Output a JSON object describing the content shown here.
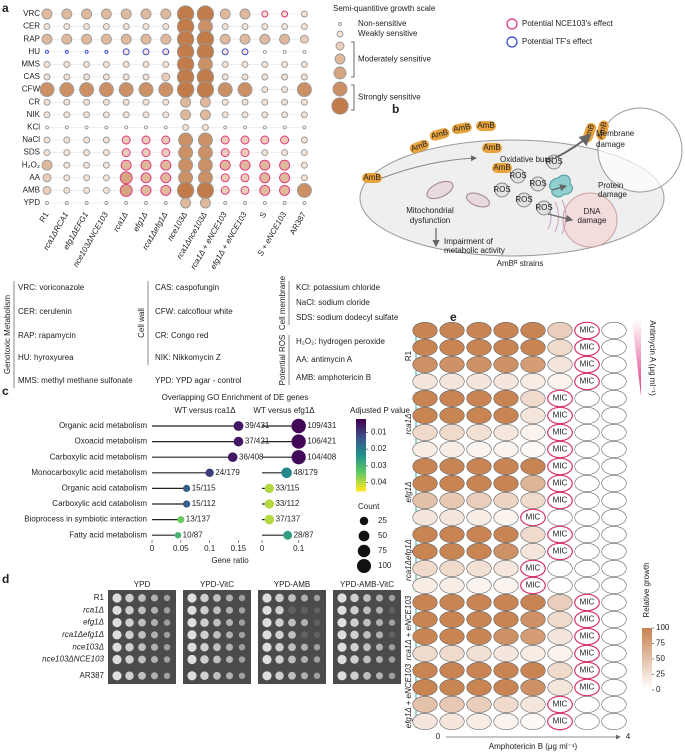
{
  "panel_a": {
    "label": "a",
    "rows": [
      "VRC",
      "CER",
      "RAP",
      "HU",
      "MMS",
      "CAS",
      "CFW",
      "CR",
      "NIK",
      "KCl",
      "NaCl",
      "SDS",
      "H₂O₂",
      "AA",
      "AMB",
      "YPD"
    ],
    "columns": [
      "R1",
      "rca1ΔRCA1",
      "efg1ΔEFG1",
      "nce103ΔNCE103",
      "rca1Δ",
      "efg1Δ",
      "rca1Δefg1Δ",
      "nce103Δ",
      "rca1Δnce103Δ",
      "rca1Δ + eNCE103",
      "efg1Δ + eNCE103",
      "S",
      "S + eNCE103",
      "AR387"
    ],
    "row_colors": [
      "#222",
      "#222",
      "#222",
      "#222",
      "#222",
      "#222",
      "#222",
      "#222",
      "#222",
      "#222",
      "#e0307a",
      "#e0307a",
      "#e0307a",
      "#e0307a",
      "#e0307a",
      "#222"
    ],
    "column_colors": [
      "#222",
      "#222",
      "#222",
      "#222",
      "#222",
      "#222",
      "#222",
      "#222",
      "#222",
      "#e0307a",
      "#e0307a",
      "#e0307a",
      "#e0307a",
      "#222"
    ],
    "scores": [
      [
        3,
        3,
        3,
        3,
        3,
        3,
        3,
        6,
        6,
        3,
        3,
        1,
        1,
        1
      ],
      [
        1,
        1,
        1,
        1,
        1,
        1,
        1,
        6,
        5,
        1,
        1,
        1,
        1,
        1
      ],
      [
        3,
        3,
        3,
        3,
        3,
        3,
        3,
        6,
        6,
        3,
        3,
        3,
        3,
        2
      ],
      [
        0,
        0,
        0,
        0,
        1,
        1,
        1,
        6,
        6,
        1,
        1,
        0,
        0,
        0
      ],
      [
        1,
        1,
        1,
        1,
        1,
        1,
        1,
        6,
        5,
        1,
        1,
        1,
        1,
        1
      ],
      [
        1,
        1,
        1,
        1,
        1,
        1,
        2,
        6,
        6,
        1,
        1,
        1,
        1,
        1
      ],
      [
        5,
        5,
        5,
        5,
        5,
        5,
        5,
        6,
        6,
        5,
        5,
        1,
        1,
        5
      ],
      [
        1,
        1,
        1,
        1,
        1,
        1,
        1,
        3,
        3,
        1,
        1,
        1,
        1,
        1
      ],
      [
        1,
        1,
        1,
        1,
        1,
        1,
        1,
        3,
        3,
        1,
        1,
        1,
        1,
        1
      ],
      [
        0,
        0,
        0,
        0,
        0,
        0,
        0,
        1,
        1,
        0,
        0,
        0,
        0,
        0
      ],
      [
        1,
        1,
        1,
        1,
        2,
        2,
        2,
        5,
        5,
        2,
        2,
        2,
        2,
        1
      ],
      [
        1,
        1,
        1,
        1,
        2,
        2,
        2,
        5,
        5,
        2,
        2,
        1,
        1,
        1
      ],
      [
        3,
        1,
        1,
        1,
        3,
        3,
        3,
        5,
        5,
        3,
        3,
        3,
        3,
        1
      ],
      [
        2,
        1,
        1,
        1,
        4,
        3,
        3,
        5,
        5,
        2,
        2,
        3,
        3,
        1
      ],
      [
        2,
        1,
        1,
        1,
        4,
        3,
        3,
        6,
        6,
        2,
        2,
        3,
        3,
        5
      ],
      [
        0,
        0,
        0,
        0,
        0,
        0,
        0,
        3,
        3,
        0,
        0,
        0,
        0,
        0
      ]
    ],
    "ring_colors": [
      [
        "#999",
        "#999",
        "#999",
        "#999",
        "#999",
        "#999",
        "#999",
        "#999",
        "#999",
        "#999",
        "#999",
        "#e0307a",
        "#e0307a",
        "#999"
      ],
      [
        "#999",
        "#999",
        "#999",
        "#999",
        "#999",
        "#999",
        "#999",
        "#999",
        "#999",
        "#999",
        "#999",
        "#999",
        "#999",
        "#999"
      ],
      [
        "#999",
        "#999",
        "#999",
        "#999",
        "#999",
        "#999",
        "#999",
        "#999",
        "#999",
        "#999",
        "#999",
        "#999",
        "#999",
        "#999"
      ],
      [
        "#3040d0",
        "#3040d0",
        "#3040d0",
        "#3040d0",
        "#3040d0",
        "#3040d0",
        "#3040d0",
        "#999",
        "#999",
        "#3040d0",
        "#3040d0",
        "#999",
        "#999",
        "#999"
      ],
      [
        "#999",
        "#999",
        "#999",
        "#999",
        "#999",
        "#999",
        "#999",
        "#999",
        "#999",
        "#999",
        "#999",
        "#999",
        "#999",
        "#999"
      ],
      [
        "#999",
        "#999",
        "#999",
        "#999",
        "#999",
        "#999",
        "#999",
        "#999",
        "#999",
        "#999",
        "#999",
        "#999",
        "#999",
        "#999"
      ],
      [
        "#999",
        "#999",
        "#999",
        "#999",
        "#999",
        "#999",
        "#999",
        "#999",
        "#999",
        "#999",
        "#999",
        "#999",
        "#999",
        "#999"
      ],
      [
        "#999",
        "#999",
        "#999",
        "#999",
        "#999",
        "#999",
        "#999",
        "#999",
        "#999",
        "#999",
        "#999",
        "#999",
        "#999",
        "#999"
      ],
      [
        "#999",
        "#999",
        "#999",
        "#999",
        "#999",
        "#999",
        "#999",
        "#999",
        "#999",
        "#999",
        "#999",
        "#999",
        "#999",
        "#999"
      ],
      [
        "#999",
        "#999",
        "#999",
        "#999",
        "#999",
        "#999",
        "#999",
        "#999",
        "#999",
        "#999",
        "#999",
        "#999",
        "#999",
        "#999"
      ],
      [
        "#999",
        "#999",
        "#999",
        "#999",
        "#e0307a",
        "#e0307a",
        "#e0307a",
        "#999",
        "#999",
        "#e0307a",
        "#e0307a",
        "#e0307a",
        "#e0307a",
        "#999"
      ],
      [
        "#999",
        "#999",
        "#999",
        "#999",
        "#e0307a",
        "#e0307a",
        "#e0307a",
        "#999",
        "#999",
        "#e0307a",
        "#e0307a",
        "#999",
        "#999",
        "#999"
      ],
      [
        "#999",
        "#999",
        "#999",
        "#999",
        "#e0307a",
        "#e0307a",
        "#e0307a",
        "#999",
        "#999",
        "#e0307a",
        "#e0307a",
        "#e0307a",
        "#e0307a",
        "#999"
      ],
      [
        "#999",
        "#999",
        "#999",
        "#999",
        "#e0307a",
        "#e0307a",
        "#e0307a",
        "#999",
        "#999",
        "#e0307a",
        "#e0307a",
        "#e0307a",
        "#e0307a",
        "#999"
      ],
      [
        "#999",
        "#999",
        "#999",
        "#999",
        "#e0307a",
        "#e0307a",
        "#e0307a",
        "#999",
        "#999",
        "#e0307a",
        "#e0307a",
        "#e0307a",
        "#e0307a",
        "#999"
      ],
      [
        "#999",
        "#999",
        "#999",
        "#999",
        "#999",
        "#999",
        "#999",
        "#999",
        "#999",
        "#999",
        "#999",
        "#999",
        "#999",
        "#999"
      ]
    ],
    "fill_none": "#ffffff",
    "fill_low": "#f4e2d4",
    "fill_high": "#c27b4a",
    "legend": {
      "title": "Semi-quantitive growth scale",
      "levels": [
        0,
        1,
        2,
        3,
        4,
        5,
        6
      ],
      "groups": [
        {
          "label": "Non-sensitive",
          "from": 0,
          "to": 0
        },
        {
          "label": "Weakly sensitive",
          "from": 1,
          "to": 1
        },
        {
          "label": "Moderately sensitive",
          "from": 2,
          "to": 4
        },
        {
          "label": "Strongly sensitive",
          "from": 5,
          "to": 6
        }
      ],
      "rings": [
        {
          "label": "Potential NCE103's effect",
          "color": "#e0307a"
        },
        {
          "label": "Potential TF's effect",
          "color": "#3040d0"
        }
      ]
    },
    "abbreviations": {
      "groups": [
        {
          "name": "Genotoxic Metabolism",
          "items": [
            "VRC: voriconazole",
            "CER: cerulenin",
            "RAP: rapamycin",
            "HU: hyroxyurea",
            "MMS: methyl methane sulfonate"
          ]
        },
        {
          "name": "Cell wall",
          "items": [
            "CAS: caspofungin",
            "CFW: calcoflour white",
            "CR: Congo red",
            "NIK: Nikkomycin Z"
          ]
        },
        {
          "name": "Cell membrane",
          "items": [
            "KCl: potassium chloride",
            "NaCl: sodium cloride",
            "SDS: sodium dodecyl sulfate"
          ]
        },
        {
          "name": "Potential ROS",
          "items": [
            "H₂O₂: hydrogen peroxide",
            "AA: antimycin A",
            "AMB: amphotericin B"
          ]
        }
      ],
      "other": [
        "YPD: YPD agar - control"
      ]
    }
  },
  "panel_b": {
    "label": "b",
    "amb": "AmB",
    "ros": "ROS",
    "oxidative_burst": "Oxidative burst",
    "membrane_damage": [
      "Membrane",
      "damage"
    ],
    "protein_damage": [
      "Protein",
      "damage"
    ],
    "dna_damage": [
      "DNA",
      "damage"
    ],
    "mitochondrial": [
      "Mitochondrial",
      "dysfunction"
    ],
    "impairment": [
      "Impairment of",
      "metabolic activity"
    ],
    "strains": "AmBᴿ strains"
  },
  "panel_c": {
    "label": "c",
    "title": "Overlapping GO Enrichment of DE genes",
    "categories": [
      "Organic acid metabolism",
      "Oxoacid metabolism",
      "Carboxylic acid metabolism",
      "Monocarboxylic acid metabolism",
      "Organic acid catabolism",
      "Carboxylic acid catabolism",
      "Bioprocess in symbiotic interaction",
      "Fatty acid metabolism"
    ],
    "x_label": "Gene ratio",
    "stem_color": "#222222",
    "colormap": [
      "#440154",
      "#3b528b",
      "#21918c",
      "#5ec962",
      "#fde725"
    ],
    "colorbar_title": "Adjusted P value",
    "colorbar_lim": [
      0.002,
      0.045
    ],
    "colorbar_ticks": [
      0.01,
      0.02,
      0.03,
      0.04
    ],
    "size_title": "Count",
    "size_ticks": [
      25,
      50,
      75,
      100
    ],
    "panels": [
      {
        "title": "WT versus rca1Δ",
        "xlim": [
          0,
          0.17
        ],
        "xticks": [
          0,
          0.05,
          0.1,
          0.15
        ],
        "values": [
          0.15,
          0.15,
          0.14,
          0.1,
          0.06,
          0.06,
          0.05,
          0.045
        ],
        "counts": [
          39,
          37,
          36,
          24,
          15,
          15,
          13,
          10
        ],
        "padj": [
          0.005,
          0.005,
          0.005,
          0.01,
          0.015,
          0.015,
          0.035,
          0.03
        ],
        "labels": [
          "39/431",
          "37/421",
          "36/408",
          "24/179",
          "15/115",
          "15/112",
          "13/137",
          "10/87"
        ]
      },
      {
        "title": "WT versus efg1Δ",
        "xlim": [
          0,
          0.12
        ],
        "xticks": [
          0,
          0.1
        ],
        "values": [
          0.1,
          0.1,
          0.1,
          0.067,
          0.02,
          0.02,
          0.02,
          0.07
        ],
        "counts": [
          109,
          106,
          104,
          48,
          33,
          33,
          37,
          28
        ],
        "padj": [
          0.003,
          0.003,
          0.003,
          0.022,
          0.04,
          0.04,
          0.04,
          0.026
        ],
        "labels": [
          "109/431",
          "106/421",
          "104/408",
          "48/179",
          "33/115",
          "33/112",
          "37/137",
          "28/87"
        ]
      }
    ]
  },
  "panel_d": {
    "label": "d",
    "media": [
      "YPD",
      "YPD-VitC",
      "YPD-AMB",
      "YPD-AMB-VitC"
    ],
    "strains": [
      "R1",
      "rca1Δ",
      "efg1Δ",
      "rca1Δefg1Δ",
      "nce103Δ",
      "nce103ΔNCE103",
      "AR387"
    ],
    "plate_color": "#4b4b4b",
    "spot_color": "#e6e6e6"
  },
  "panel_e": {
    "label": "e",
    "groups": [
      "R1",
      "rca1Δ",
      "efg1Δ",
      "rca1Δefg1Δ",
      "rca1Δ + eNCE103",
      "efg1Δ + eNCE103"
    ],
    "values": [
      [
        [
          100,
          100,
          100,
          100,
          100,
          40,
          "MIC",
          0
        ],
        [
          100,
          100,
          100,
          100,
          100,
          30,
          "MIC",
          0
        ],
        [
          90,
          90,
          90,
          90,
          80,
          20,
          "MIC",
          0
        ],
        [
          20,
          20,
          20,
          20,
          15,
          10,
          "MIC",
          0
        ]
      ],
      [
        [
          100,
          100,
          100,
          100,
          30,
          "MIC",
          0,
          0
        ],
        [
          100,
          100,
          100,
          100,
          20,
          "MIC",
          0,
          0
        ],
        [
          30,
          30,
          25,
          20,
          10,
          "MIC",
          0,
          0
        ],
        [
          15,
          15,
          10,
          10,
          5,
          "MIC",
          0,
          0
        ]
      ],
      [
        [
          100,
          100,
          100,
          100,
          100,
          "MIC",
          0,
          0
        ],
        [
          100,
          100,
          100,
          100,
          60,
          "MIC",
          0,
          0
        ],
        [
          50,
          45,
          40,
          35,
          30,
          "MIC",
          0,
          0
        ],
        [
          20,
          20,
          15,
          10,
          "MIC",
          0,
          0,
          0
        ]
      ],
      [
        [
          100,
          100,
          100,
          100,
          30,
          "MIC",
          0,
          0
        ],
        [
          100,
          100,
          100,
          90,
          20,
          "MIC",
          0,
          0
        ],
        [
          30,
          30,
          25,
          20,
          "MIC",
          0,
          0,
          0
        ],
        [
          15,
          15,
          10,
          10,
          "MIC",
          0,
          0,
          0
        ]
      ],
      [
        [
          100,
          100,
          100,
          100,
          100,
          40,
          "MIC",
          0
        ],
        [
          100,
          100,
          100,
          100,
          90,
          30,
          "MIC",
          0
        ],
        [
          100,
          100,
          100,
          90,
          80,
          20,
          "MIC",
          0
        ],
        [
          30,
          30,
          25,
          20,
          15,
          10,
          "MIC",
          0
        ]
      ],
      [
        [
          100,
          100,
          100,
          100,
          100,
          30,
          "MIC",
          0
        ],
        [
          100,
          100,
          100,
          100,
          90,
          20,
          "MIC",
          0
        ],
        [
          50,
          45,
          40,
          30,
          20,
          "MIC",
          0,
          0
        ],
        [
          20,
          20,
          15,
          10,
          5,
          "MIC",
          0,
          0
        ]
      ]
    ],
    "x_label": "Amphotericin B (μg ml⁻¹)",
    "xlim": [
      0,
      4
    ],
    "y_label": "Antimycin A (μg ml⁻¹)",
    "colorbar_title": "Relative growth",
    "colorbar_lim": [
      0,
      100
    ],
    "colorbar_ticks": [
      0,
      25,
      50,
      75,
      100
    ],
    "color_low": "#ffffff",
    "color_high": "#c98454",
    "mic_color": "#d6336c",
    "group_line_color": "#3aa79a"
  }
}
